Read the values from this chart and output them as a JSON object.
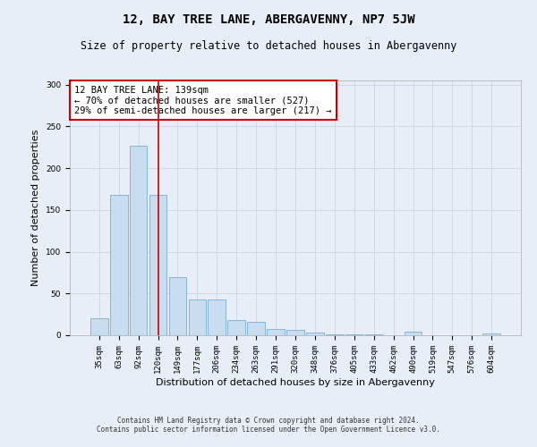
{
  "title": "12, BAY TREE LANE, ABERGAVENNY, NP7 5JW",
  "subtitle": "Size of property relative to detached houses in Abergavenny",
  "xlabel": "Distribution of detached houses by size in Abergavenny",
  "ylabel": "Number of detached properties",
  "categories": [
    "35sqm",
    "63sqm",
    "92sqm",
    "120sqm",
    "149sqm",
    "177sqm",
    "206sqm",
    "234sqm",
    "263sqm",
    "291sqm",
    "320sqm",
    "348sqm",
    "376sqm",
    "405sqm",
    "433sqm",
    "462sqm",
    "490sqm",
    "519sqm",
    "547sqm",
    "576sqm",
    "604sqm"
  ],
  "values": [
    20,
    168,
    227,
    168,
    70,
    43,
    43,
    18,
    16,
    7,
    6,
    3,
    1,
    1,
    1,
    0,
    4,
    0,
    0,
    0,
    2
  ],
  "bar_color": "#c8ddf0",
  "bar_edge_color": "#7aadd4",
  "vline_x_index": 3,
  "vline_color": "#cc0000",
  "annotation_text": "12 BAY TREE LANE: 139sqm\n← 70% of detached houses are smaller (527)\n29% of semi-detached houses are larger (217) →",
  "annotation_box_color": "#ffffff",
  "annotation_box_edge": "#cc0000",
  "ylim": [
    0,
    305
  ],
  "yticks": [
    0,
    50,
    100,
    150,
    200,
    250,
    300
  ],
  "footer1": "Contains HM Land Registry data © Crown copyright and database right 2024.",
  "footer2": "Contains public sector information licensed under the Open Government Licence v3.0.",
  "background_color": "#e8eef8",
  "grid_color": "#c8d0e0",
  "title_fontsize": 10,
  "subtitle_fontsize": 8.5,
  "tick_fontsize": 6.5,
  "label_fontsize": 8,
  "annotation_fontsize": 7.5,
  "footer_fontsize": 5.5
}
